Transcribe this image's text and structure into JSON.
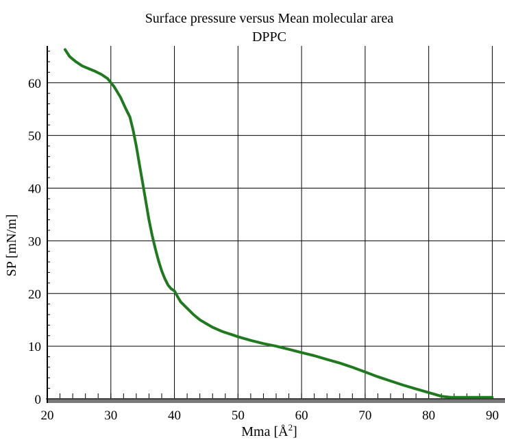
{
  "chart_data": {
    "type": "line",
    "title": "Surface pressure versus Mean molecular area",
    "subtitle": "DPPC",
    "xlabel": "Mma [Å",
    "xlabel_sup": "2",
    "xlabel_end": "]",
    "ylabel": "SP [mN/m]",
    "xlim": [
      20,
      92
    ],
    "ylim": [
      0,
      67
    ],
    "xticks": [
      "20",
      "30",
      "40",
      "50",
      "60",
      "70",
      "80",
      "90"
    ],
    "yticks": [
      "0",
      "10",
      "20",
      "30",
      "40",
      "50",
      "60"
    ],
    "grid": true,
    "line_color": "#1f7a1f",
    "series": [
      {
        "x": [
          22.8,
          23.5,
          24.5,
          25.5,
          26.5,
          27.5,
          28.5,
          29.5,
          30.5,
          31.5,
          32.3,
          33.0,
          33.5,
          34.0,
          34.5,
          35.0,
          35.5,
          36.0,
          36.5,
          37.0,
          37.5,
          38.0,
          38.5,
          39.0,
          39.5,
          40.0,
          40.5,
          41.0,
          42.0,
          43.0,
          44.0,
          45.0,
          46.0,
          47.5,
          49.0,
          50.0,
          52.0,
          54.0,
          56.0,
          58.0,
          60.0,
          62.0,
          64.0,
          66.0,
          68.0,
          70.0,
          72.0,
          74.0,
          76.0,
          78.0,
          80.0,
          82.0,
          83.5,
          85.0,
          87.0,
          90.0
        ],
        "y": [
          66.3,
          65.0,
          64.0,
          63.2,
          62.7,
          62.2,
          61.6,
          60.8,
          59.3,
          57.3,
          55.2,
          53.5,
          51.0,
          48.0,
          44.5,
          41.0,
          37.5,
          34.0,
          31.0,
          28.5,
          26.2,
          24.3,
          22.8,
          21.6,
          20.9,
          20.5,
          19.4,
          18.4,
          17.2,
          16.0,
          15.0,
          14.3,
          13.6,
          12.8,
          12.2,
          11.8,
          11.1,
          10.5,
          10.0,
          9.4,
          8.8,
          8.2,
          7.5,
          6.8,
          6.0,
          5.1,
          4.2,
          3.4,
          2.6,
          1.9,
          1.2,
          0.5,
          0.3,
          0.3,
          0.3,
          0.3
        ]
      }
    ]
  }
}
